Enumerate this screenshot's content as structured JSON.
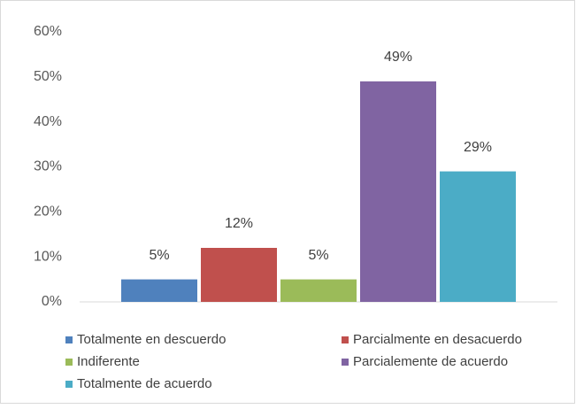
{
  "chart_data": {
    "type": "bar",
    "categories": [
      null
    ],
    "series": [
      {
        "name": "Totalmente en descuerdo",
        "color": "#4f81bd",
        "values": [
          5
        ],
        "value_labels": [
          "5%"
        ]
      },
      {
        "name": "Parcialmente en desacuerdo",
        "color": "#c0504d",
        "values": [
          12
        ],
        "value_labels": [
          "12%"
        ]
      },
      {
        "name": "Indiferente",
        "color": "#9bbb59",
        "values": [
          5
        ],
        "value_labels": [
          "5%"
        ]
      },
      {
        "name": "Parcialemente de acuerdo",
        "color": "#8064a2",
        "values": [
          49
        ],
        "value_labels": [
          "49%"
        ]
      },
      {
        "name": "Totalmente de acuerdo",
        "color": "#4bacc6",
        "values": [
          29
        ],
        "value_labels": [
          "29%"
        ]
      }
    ],
    "ylim": [
      0,
      60
    ],
    "yticks": [
      {
        "value": 0,
        "label": "0%"
      },
      {
        "value": 10,
        "label": "10%"
      },
      {
        "value": 20,
        "label": "20%"
      },
      {
        "value": 30,
        "label": "30%"
      },
      {
        "value": 40,
        "label": "40%"
      },
      {
        "value": 50,
        "label": "50%"
      },
      {
        "value": 60,
        "label": "60%"
      }
    ],
    "grid": false,
    "legend": "bottom"
  }
}
